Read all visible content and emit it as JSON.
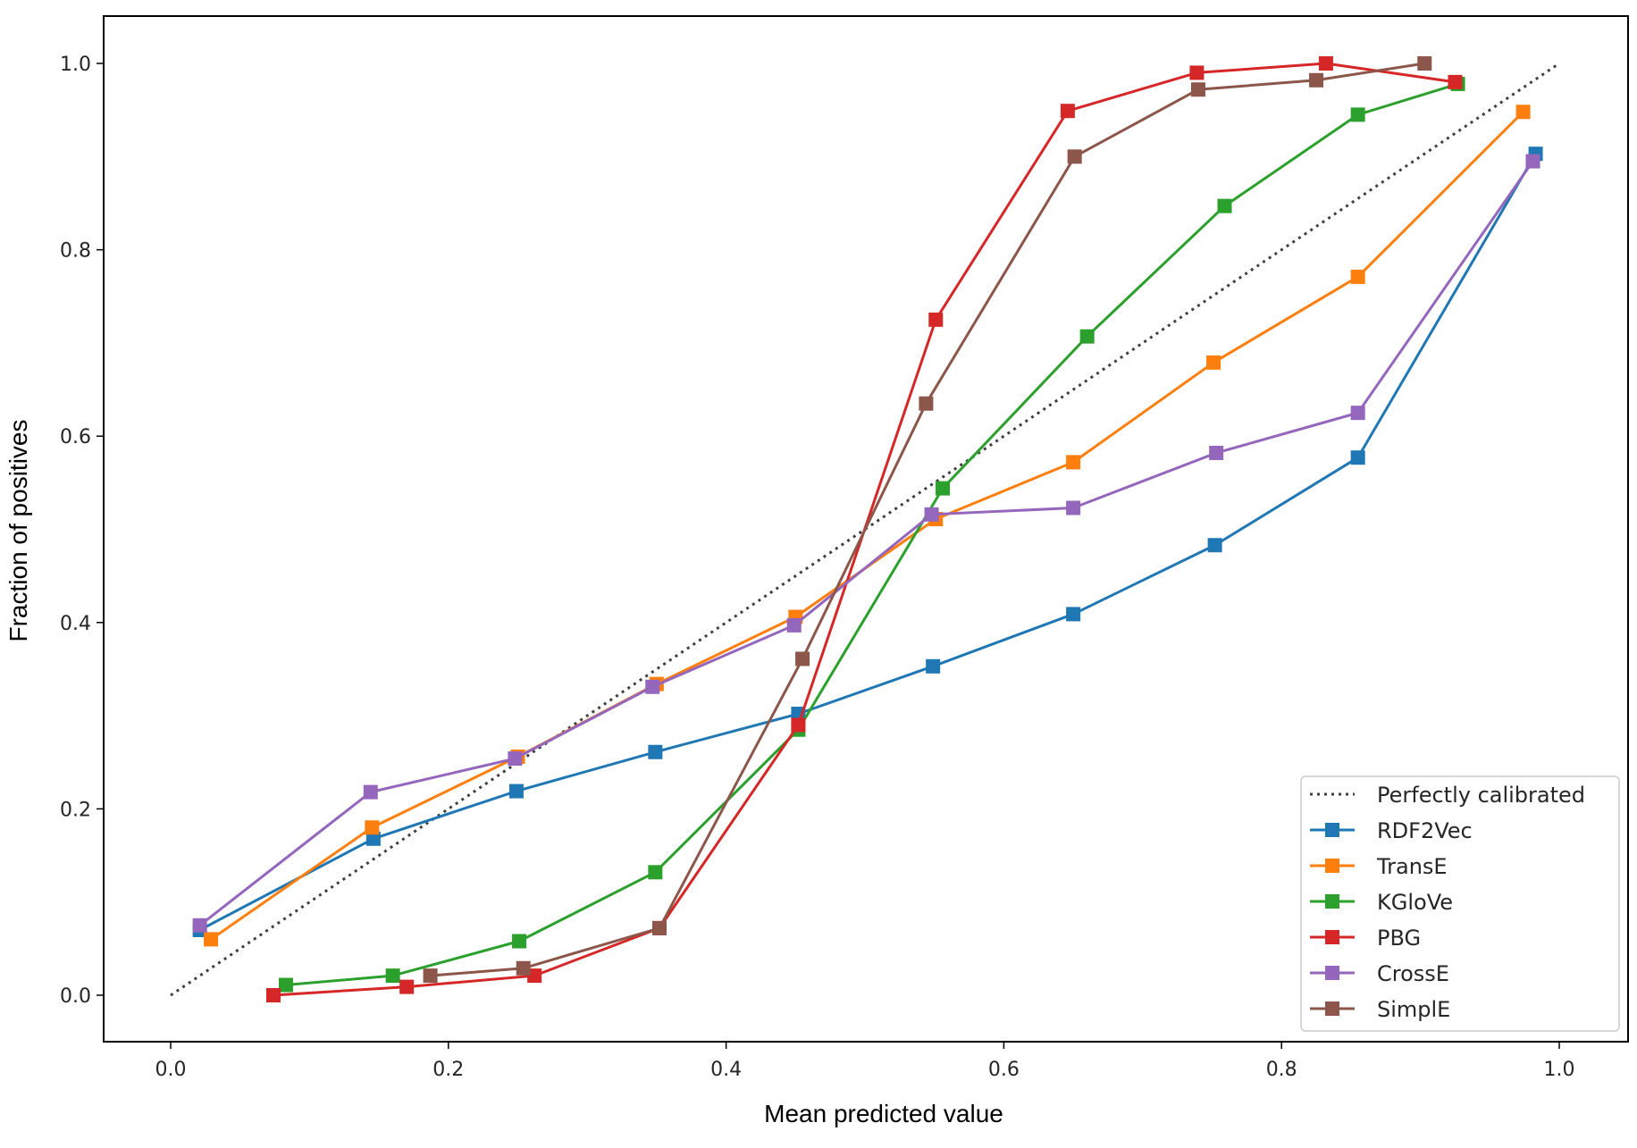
{
  "chart_data": {
    "type": "line",
    "xlabel": "Mean predicted value",
    "ylabel": "Fraction of positives",
    "xlim": [
      -0.05,
      1.05
    ],
    "ylim": [
      -0.05,
      1.05
    ],
    "xticks": [
      "0.0",
      "0.2",
      "0.4",
      "0.6",
      "0.8",
      "1.0"
    ],
    "yticks": [
      "0.0",
      "0.2",
      "0.4",
      "0.6",
      "0.8",
      "1.0"
    ],
    "grid": false,
    "legend_position": "bottom-right",
    "reference": {
      "name": "Perfectly calibrated",
      "color": "#404040",
      "x": [
        0,
        1
      ],
      "y": [
        0,
        1
      ]
    },
    "series": [
      {
        "name": "RDF2Vec",
        "color": "#1f77b4",
        "x": [
          0.021,
          0.146,
          0.249,
          0.349,
          0.452,
          0.549,
          0.65,
          0.752,
          0.855,
          0.983
        ],
        "y": [
          0.07,
          0.168,
          0.219,
          0.261,
          0.302,
          0.353,
          0.409,
          0.483,
          0.577,
          0.903
        ]
      },
      {
        "name": "TransE",
        "color": "#ff7f0e",
        "x": [
          0.029,
          0.145,
          0.25,
          0.35,
          0.45,
          0.551,
          0.65,
          0.751,
          0.855,
          0.974
        ],
        "y": [
          0.06,
          0.18,
          0.256,
          0.334,
          0.406,
          0.511,
          0.572,
          0.679,
          0.771,
          0.948
        ]
      },
      {
        "name": "KGloVe",
        "color": "#2ca02c",
        "x": [
          0.083,
          0.16,
          0.251,
          0.349,
          0.452,
          0.556,
          0.66,
          0.759,
          0.855,
          0.927
        ],
        "y": [
          0.011,
          0.021,
          0.058,
          0.132,
          0.285,
          0.544,
          0.707,
          0.847,
          0.945,
          0.978
        ]
      },
      {
        "name": "PBG",
        "color": "#d62728",
        "x": [
          0.074,
          0.17,
          0.262,
          0.352,
          0.452,
          0.551,
          0.646,
          0.739,
          0.832,
          0.925
        ],
        "y": [
          0.0,
          0.009,
          0.021,
          0.072,
          0.29,
          0.725,
          0.949,
          0.99,
          1.0,
          0.98
        ]
      },
      {
        "name": "CrossE",
        "color": "#9467bd",
        "x": [
          0.021,
          0.144,
          0.248,
          0.347,
          0.449,
          0.548,
          0.65,
          0.753,
          0.855,
          0.981
        ],
        "y": [
          0.075,
          0.218,
          0.254,
          0.331,
          0.397,
          0.516,
          0.523,
          0.582,
          0.625,
          0.895
        ]
      },
      {
        "name": "SimplE",
        "color": "#8c564b",
        "x": [
          0.187,
          0.254,
          0.352,
          0.455,
          0.544,
          0.651,
          0.74,
          0.825,
          0.903
        ],
        "y": [
          0.021,
          0.029,
          0.072,
          0.361,
          0.635,
          0.9,
          0.972,
          0.982,
          1.0
        ]
      }
    ]
  }
}
